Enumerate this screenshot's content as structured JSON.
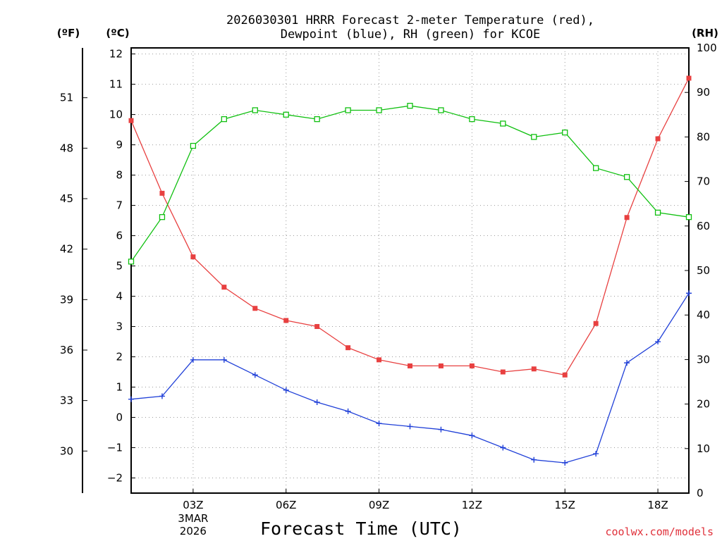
{
  "chart_data": {
    "type": "line",
    "title": [
      "2026030301 HRRR Forecast 2-meter Temperature (red),",
      "Dewpoint (blue), RH (green) for KCOE"
    ],
    "xlabel": "Forecast Time (UTC)",
    "credit": "coolwx.com/models",
    "units": {
      "fahrenheit": "(ºF)",
      "celsius": "(ºC)",
      "rh": "(RH)"
    },
    "x": [
      1,
      2,
      3,
      4,
      5,
      6,
      7,
      8,
      9,
      10,
      11,
      12,
      13,
      14,
      15,
      16,
      17,
      18,
      19
    ],
    "x_ticks": [
      {
        "x": 3,
        "label": "03Z",
        "sub": [
          "3MAR",
          "2026"
        ]
      },
      {
        "x": 6,
        "label": "06Z"
      },
      {
        "x": 9,
        "label": "09Z"
      },
      {
        "x": 12,
        "label": "12Z"
      },
      {
        "x": 15,
        "label": "15Z"
      },
      {
        "x": 18,
        "label": "18Z"
      }
    ],
    "xlim": [
      1,
      19
    ],
    "ylim_celsius": [
      -2.5,
      12.2
    ],
    "ylim_rh": [
      0,
      100
    ],
    "y_ticks_celsius": [
      -2,
      -1,
      0,
      1,
      2,
      3,
      4,
      5,
      6,
      7,
      8,
      9,
      10,
      11,
      12
    ],
    "y_ticks_fahrenheit": [
      30,
      33,
      36,
      39,
      42,
      45,
      48,
      51
    ],
    "y_ticks_rh": [
      0,
      10,
      20,
      30,
      40,
      50,
      60,
      70,
      80,
      90,
      100
    ],
    "series": [
      {
        "name": "Temperature",
        "axis": "celsius",
        "color": "#e84040",
        "marker": "filled-square",
        "values": [
          9.8,
          7.4,
          5.3,
          4.3,
          3.6,
          3.2,
          3.0,
          2.3,
          1.9,
          1.7,
          1.7,
          1.7,
          1.5,
          1.6,
          1.4,
          3.1,
          6.6,
          9.2,
          11.2
        ]
      },
      {
        "name": "Dewpoint",
        "axis": "celsius",
        "color": "#2040d8",
        "marker": "plus",
        "values": [
          0.6,
          0.7,
          1.9,
          1.9,
          1.4,
          0.9,
          0.5,
          0.2,
          -0.2,
          -0.3,
          -0.4,
          -0.6,
          -1.0,
          -1.4,
          -1.5,
          -1.2,
          1.8,
          2.5,
          4.1
        ]
      },
      {
        "name": "RH",
        "axis": "rh",
        "color": "#10c010",
        "marker": "open-square",
        "values": [
          52,
          62,
          78,
          84,
          86,
          85,
          84,
          86,
          86,
          87,
          86,
          84,
          83,
          80,
          81,
          73,
          71,
          63,
          62
        ]
      }
    ]
  }
}
